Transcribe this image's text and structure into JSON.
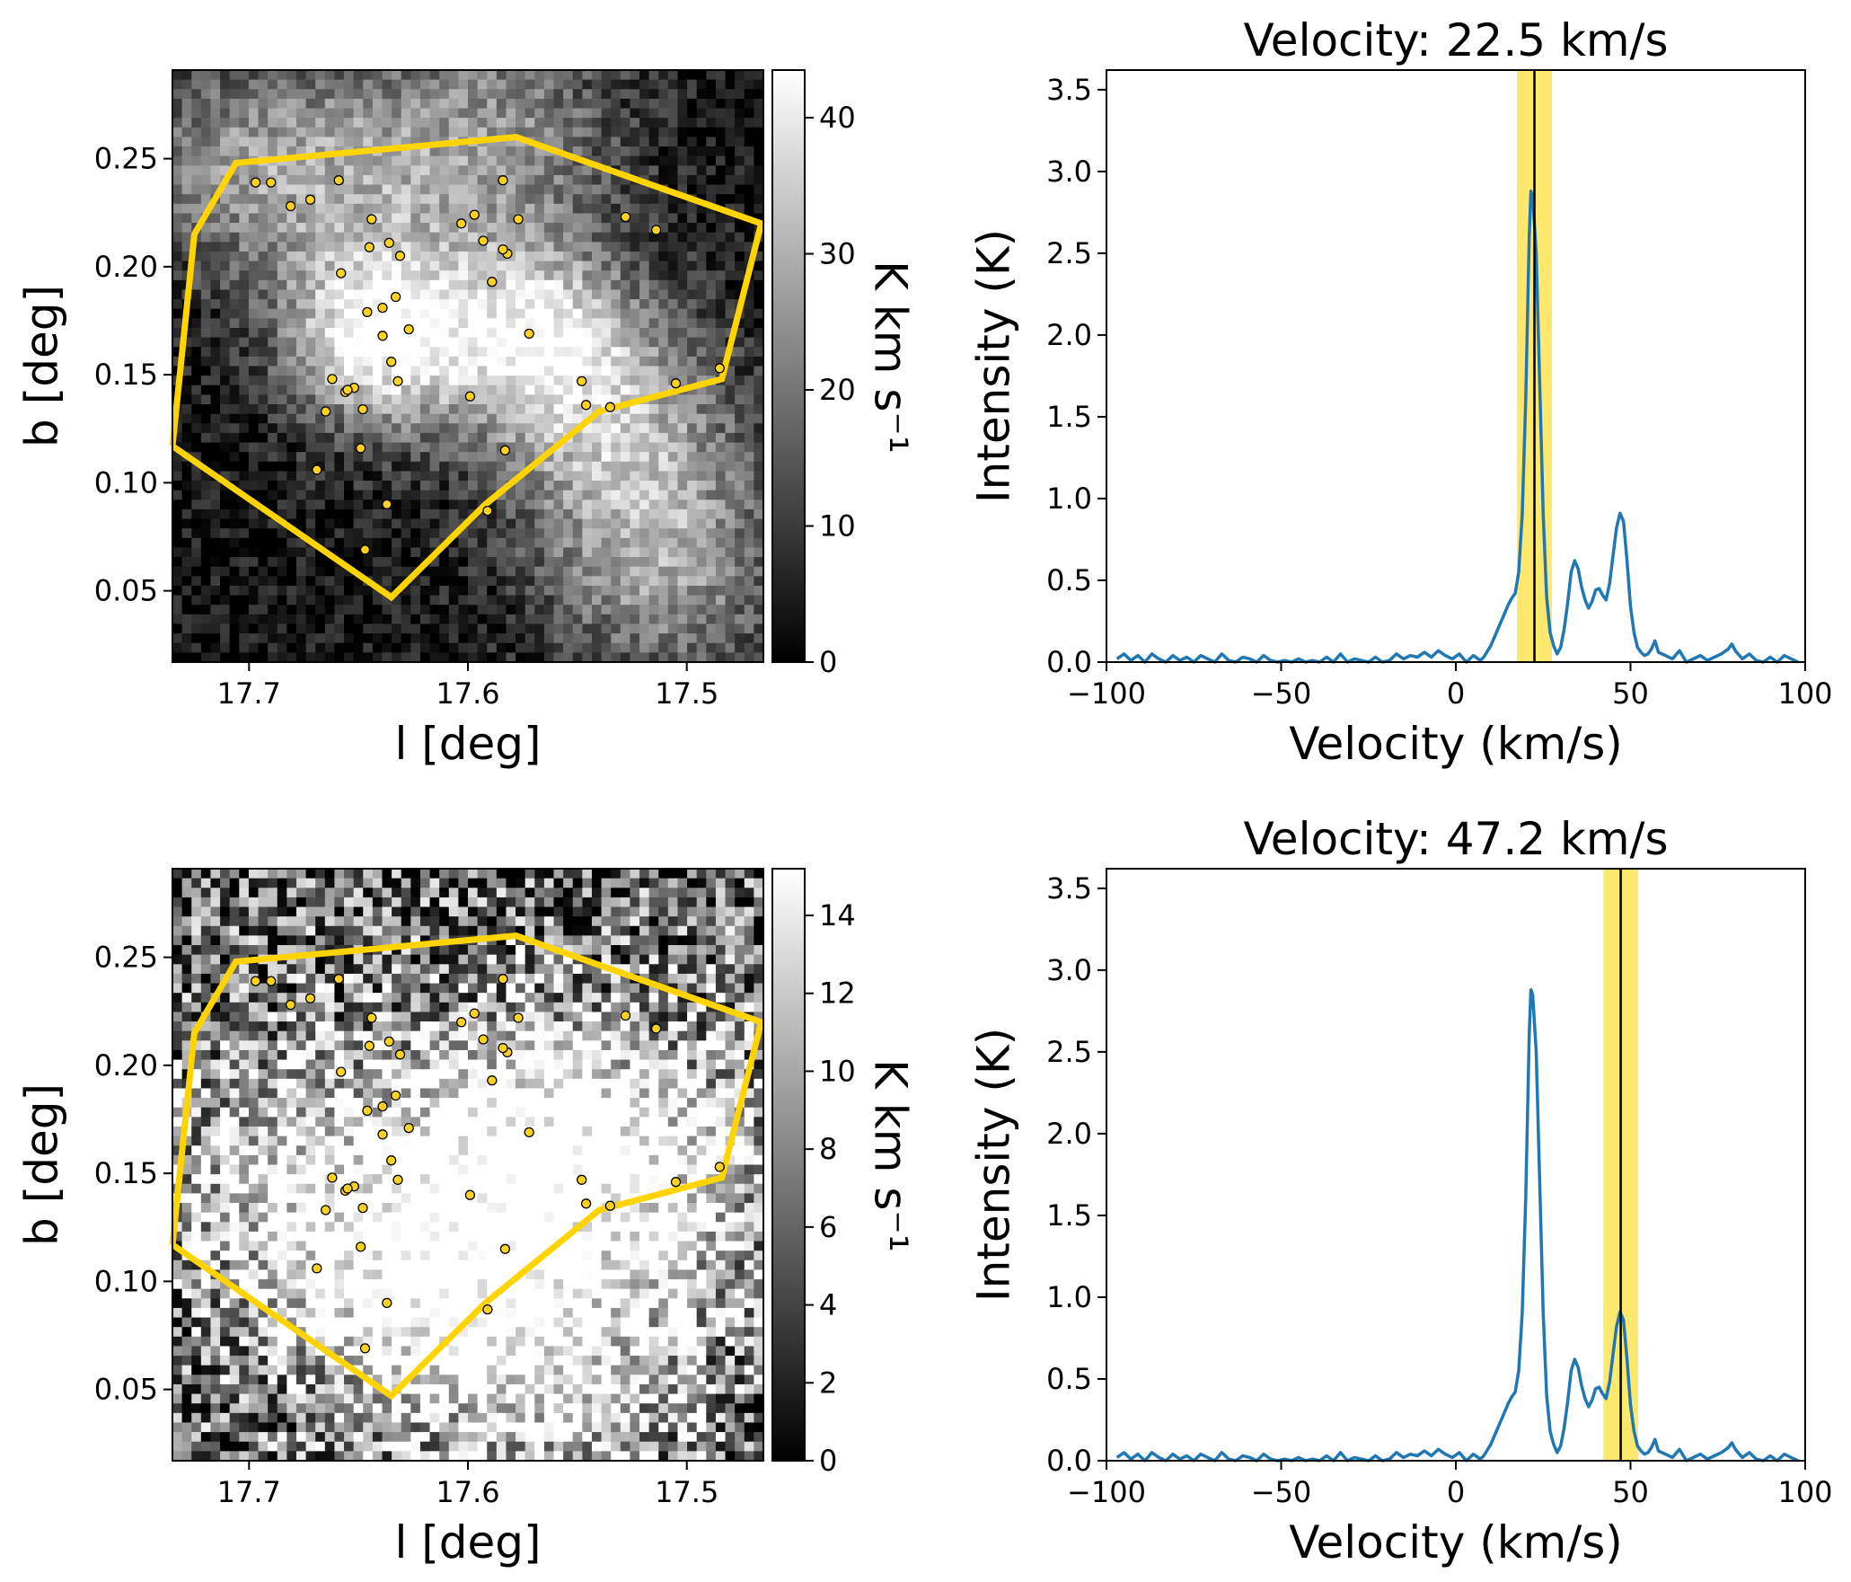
{
  "colors": {
    "polygon": "#ffd400",
    "marker_fill": "#ffd21f",
    "marker_edge": "#000000",
    "spectrum_line": "#1f77b4",
    "velocity_band": "#ffe766",
    "velocity_line": "#000000"
  },
  "chart_data": [
    {
      "type": "heatmap",
      "panel": "top-left",
      "title": "",
      "xlabel": "l [deg]",
      "ylabel": "b [deg]",
      "xlim": [
        17.735,
        17.465
      ],
      "ylim": [
        0.017,
        0.291
      ],
      "xticks": [
        17.7,
        17.6,
        17.5
      ],
      "xtick_labels": [
        "17.7",
        "17.6",
        "17.5"
      ],
      "yticks": [
        0.05,
        0.1,
        0.15,
        0.2,
        0.25
      ],
      "ytick_labels": [
        "0.05",
        "0.10",
        "0.15",
        "0.20",
        "0.25"
      ],
      "colormap": "gray",
      "colorbar": {
        "label": "K km s⁻¹",
        "range": [
          0,
          43.5
        ],
        "ticks": [
          0,
          10,
          20,
          30,
          40
        ],
        "tick_labels": [
          "0",
          "10",
          "20",
          "30",
          "40"
        ]
      },
      "emission_blobs": [
        {
          "l": 17.64,
          "b": 0.165,
          "sigma": 0.03,
          "amp": 38
        },
        {
          "l": 17.66,
          "b": 0.24,
          "sigma": 0.045,
          "amp": 22
        },
        {
          "l": 17.57,
          "b": 0.17,
          "sigma": 0.03,
          "amp": 28
        },
        {
          "l": 17.535,
          "b": 0.13,
          "sigma": 0.04,
          "amp": 25
        },
        {
          "l": 17.51,
          "b": 0.06,
          "sigma": 0.04,
          "amp": 22
        },
        {
          "l": 17.58,
          "b": 0.26,
          "sigma": 0.04,
          "amp": 18
        },
        {
          "l": 17.72,
          "b": 0.25,
          "sigma": 0.03,
          "amp": 12
        }
      ],
      "polygon": {
        "l": [
          17.735,
          17.725,
          17.706,
          17.578,
          17.466,
          17.484,
          17.54,
          17.592,
          17.635,
          17.735
        ],
        "b": [
          0.117,
          0.215,
          0.248,
          0.26,
          0.22,
          0.148,
          0.133,
          0.09,
          0.047,
          0.117
        ]
      },
      "points": {
        "l": [
          17.697,
          17.69,
          17.681,
          17.672,
          17.659,
          17.644,
          17.636,
          17.631,
          17.658,
          17.646,
          17.639,
          17.639,
          17.627,
          17.662,
          17.652,
          17.665,
          17.656,
          17.655,
          17.648,
          17.649,
          17.669,
          17.632,
          17.635,
          17.647,
          17.637,
          17.603,
          17.597,
          17.584,
          17.577,
          17.582,
          17.584,
          17.589,
          17.572,
          17.599,
          17.583,
          17.591,
          17.593,
          17.528,
          17.514,
          17.548,
          17.546,
          17.535,
          17.505,
          17.485,
          17.645,
          17.633
        ],
        "b": [
          0.239,
          0.239,
          0.228,
          0.231,
          0.24,
          0.222,
          0.211,
          0.205,
          0.197,
          0.179,
          0.168,
          0.181,
          0.171,
          0.148,
          0.144,
          0.133,
          0.142,
          0.143,
          0.134,
          0.116,
          0.106,
          0.147,
          0.156,
          0.069,
          0.09,
          0.22,
          0.224,
          0.24,
          0.222,
          0.206,
          0.208,
          0.193,
          0.169,
          0.14,
          0.115,
          0.087,
          0.212,
          0.223,
          0.217,
          0.147,
          0.136,
          0.135,
          0.146,
          0.153,
          0.209,
          0.186
        ]
      }
    },
    {
      "type": "line",
      "panel": "top-right",
      "title": "Velocity: 22.5 km/s",
      "xlabel": "Velocity (km/s)",
      "ylabel": "Intensity (K)",
      "xlim": [
        -100,
        100
      ],
      "ylim": [
        0,
        3.62
      ],
      "xticks": [
        -100,
        -50,
        0,
        50,
        100
      ],
      "xtick_labels": [
        "−100",
        "−50",
        "0",
        "50",
        "100"
      ],
      "yticks": [
        0,
        0.5,
        1.0,
        1.5,
        2.0,
        2.5,
        3.0,
        3.5
      ],
      "ytick_labels": [
        "0.0",
        "0.5",
        "1.0",
        "1.5",
        "2.0",
        "2.5",
        "3.0",
        "3.5"
      ],
      "velocity_marker": 22.5,
      "velocity_band": [
        17.5,
        27.5
      ],
      "series": [
        {
          "x": [
            -97,
            -95,
            -93,
            -91,
            -89,
            -87,
            -85,
            -83,
            -81,
            -79,
            -77,
            -75,
            -73,
            -71,
            -69,
            -67,
            -65,
            -63,
            -61,
            -59,
            -57,
            -55,
            -53,
            -51,
            -49,
            -47,
            -45,
            -43,
            -41,
            -39,
            -37,
            -35,
            -33,
            -31,
            -29,
            -27,
            -25,
            -23,
            -21,
            -19,
            -17,
            -15,
            -13,
            -11,
            -9,
            -7,
            -5,
            -3,
            -1,
            1,
            3,
            5,
            7,
            8,
            10,
            12,
            14,
            15,
            16,
            17,
            18,
            19,
            20,
            21,
            21.5,
            22,
            23,
            24,
            25,
            26,
            27,
            28,
            29,
            30,
            31,
            32,
            33,
            34,
            35,
            36,
            37,
            38,
            39,
            40,
            41,
            42,
            43,
            44,
            45,
            46,
            47,
            48,
            49,
            50,
            51,
            52,
            53,
            54,
            55,
            56,
            57,
            58,
            60,
            62,
            64,
            66,
            68,
            70,
            72,
            74,
            76,
            78,
            79,
            80,
            82,
            84,
            86,
            88,
            90,
            92,
            94,
            96,
            98
          ],
          "y": [
            0.02,
            0.05,
            0.01,
            0.04,
            0.0,
            0.05,
            0.02,
            0.0,
            0.04,
            0.01,
            0.03,
            0.0,
            0.04,
            0.02,
            0.0,
            0.05,
            0.01,
            0.0,
            0.03,
            0.02,
            0.0,
            0.04,
            0.01,
            0.0,
            0.01,
            0.0,
            0.02,
            0.0,
            0.01,
            0.0,
            0.03,
            0.0,
            0.05,
            0.0,
            0.02,
            0.01,
            0.0,
            0.03,
            0.0,
            0.01,
            0.05,
            0.02,
            0.04,
            0.03,
            0.06,
            0.03,
            0.07,
            0.04,
            0.02,
            0.05,
            0.0,
            0.04,
            0.01,
            0.03,
            0.1,
            0.2,
            0.3,
            0.35,
            0.39,
            0.42,
            0.55,
            0.9,
            1.6,
            2.6,
            2.88,
            2.85,
            2.5,
            1.7,
            0.9,
            0.4,
            0.18,
            0.1,
            0.05,
            0.09,
            0.2,
            0.36,
            0.55,
            0.62,
            0.57,
            0.46,
            0.38,
            0.33,
            0.37,
            0.44,
            0.45,
            0.41,
            0.38,
            0.48,
            0.65,
            0.82,
            0.91,
            0.86,
            0.62,
            0.34,
            0.18,
            0.09,
            0.06,
            0.04,
            0.05,
            0.08,
            0.13,
            0.06,
            0.04,
            0.02,
            0.07,
            0.0,
            0.02,
            0.04,
            0.01,
            0.03,
            0.05,
            0.08,
            0.11,
            0.07,
            0.02,
            0.05,
            0.01,
            0.0,
            0.03,
            0.0,
            0.04,
            0.02,
            0.0
          ]
        }
      ]
    },
    {
      "type": "heatmap",
      "panel": "bottom-left",
      "title": "",
      "xlabel": "l [deg]",
      "ylabel": "b [deg]",
      "xlim": [
        17.735,
        17.465
      ],
      "ylim": [
        0.017,
        0.291
      ],
      "xticks": [
        17.7,
        17.6,
        17.5
      ],
      "xtick_labels": [
        "17.7",
        "17.6",
        "17.5"
      ],
      "yticks": [
        0.05,
        0.1,
        0.15,
        0.2,
        0.25
      ],
      "ytick_labels": [
        "0.05",
        "0.10",
        "0.15",
        "0.20",
        "0.25"
      ],
      "colormap": "gray",
      "colorbar": {
        "label": "K km s⁻¹",
        "range": [
          0,
          15.2
        ],
        "ticks": [
          0,
          2,
          4,
          6,
          8,
          10,
          12,
          14
        ],
        "tick_labels": [
          "0",
          "2",
          "4",
          "6",
          "8",
          "10",
          "12",
          "14"
        ]
      },
      "emission_blobs": [
        {
          "l": 17.62,
          "b": 0.09,
          "sigma": 0.045,
          "amp": 11
        },
        {
          "l": 17.52,
          "b": 0.15,
          "sigma": 0.05,
          "amp": 10
        },
        {
          "l": 17.68,
          "b": 0.15,
          "sigma": 0.05,
          "amp": 8
        },
        {
          "l": 17.58,
          "b": 0.17,
          "sigma": 0.04,
          "amp": 8
        },
        {
          "l": 17.55,
          "b": 0.05,
          "sigma": 0.04,
          "amp": 7
        }
      ],
      "polygon": {
        "l": [
          17.735,
          17.725,
          17.706,
          17.578,
          17.466,
          17.484,
          17.54,
          17.592,
          17.635,
          17.735
        ],
        "b": [
          0.117,
          0.215,
          0.248,
          0.26,
          0.22,
          0.148,
          0.133,
          0.09,
          0.047,
          0.117
        ]
      },
      "points": {
        "l": [
          17.697,
          17.69,
          17.681,
          17.672,
          17.659,
          17.644,
          17.636,
          17.631,
          17.658,
          17.646,
          17.639,
          17.639,
          17.627,
          17.662,
          17.652,
          17.665,
          17.656,
          17.655,
          17.648,
          17.649,
          17.669,
          17.632,
          17.635,
          17.647,
          17.637,
          17.603,
          17.597,
          17.584,
          17.577,
          17.582,
          17.584,
          17.589,
          17.572,
          17.599,
          17.583,
          17.591,
          17.593,
          17.528,
          17.514,
          17.548,
          17.546,
          17.535,
          17.505,
          17.485,
          17.645,
          17.633
        ],
        "b": [
          0.239,
          0.239,
          0.228,
          0.231,
          0.24,
          0.222,
          0.211,
          0.205,
          0.197,
          0.179,
          0.168,
          0.181,
          0.171,
          0.148,
          0.144,
          0.133,
          0.142,
          0.143,
          0.134,
          0.116,
          0.106,
          0.147,
          0.156,
          0.069,
          0.09,
          0.22,
          0.224,
          0.24,
          0.222,
          0.206,
          0.208,
          0.193,
          0.169,
          0.14,
          0.115,
          0.087,
          0.212,
          0.223,
          0.217,
          0.147,
          0.136,
          0.135,
          0.146,
          0.153,
          0.209,
          0.186
        ]
      }
    },
    {
      "type": "line",
      "panel": "bottom-right",
      "title": "Velocity: 47.2 km/s",
      "xlabel": "Velocity (km/s)",
      "ylabel": "Intensity (K)",
      "xlim": [
        -100,
        100
      ],
      "ylim": [
        0,
        3.62
      ],
      "xticks": [
        -100,
        -50,
        0,
        50,
        100
      ],
      "xtick_labels": [
        "−100",
        "−50",
        "0",
        "50",
        "100"
      ],
      "yticks": [
        0,
        0.5,
        1.0,
        1.5,
        2.0,
        2.5,
        3.0,
        3.5
      ],
      "ytick_labels": [
        "0.0",
        "0.5",
        "1.0",
        "1.5",
        "2.0",
        "2.5",
        "3.0",
        "3.5"
      ],
      "velocity_marker": 47.2,
      "velocity_band": [
        42.2,
        52.2
      ],
      "series": [
        {
          "x": [
            -97,
            -95,
            -93,
            -91,
            -89,
            -87,
            -85,
            -83,
            -81,
            -79,
            -77,
            -75,
            -73,
            -71,
            -69,
            -67,
            -65,
            -63,
            -61,
            -59,
            -57,
            -55,
            -53,
            -51,
            -49,
            -47,
            -45,
            -43,
            -41,
            -39,
            -37,
            -35,
            -33,
            -31,
            -29,
            -27,
            -25,
            -23,
            -21,
            -19,
            -17,
            -15,
            -13,
            -11,
            -9,
            -7,
            -5,
            -3,
            -1,
            1,
            3,
            5,
            7,
            8,
            10,
            12,
            14,
            15,
            16,
            17,
            18,
            19,
            20,
            21,
            21.5,
            22,
            23,
            24,
            25,
            26,
            27,
            28,
            29,
            30,
            31,
            32,
            33,
            34,
            35,
            36,
            37,
            38,
            39,
            40,
            41,
            42,
            43,
            44,
            45,
            46,
            47,
            48,
            49,
            50,
            51,
            52,
            53,
            54,
            55,
            56,
            57,
            58,
            60,
            62,
            64,
            66,
            68,
            70,
            72,
            74,
            76,
            78,
            79,
            80,
            82,
            84,
            86,
            88,
            90,
            92,
            94,
            96,
            98
          ],
          "y": [
            0.02,
            0.05,
            0.01,
            0.04,
            0.0,
            0.05,
            0.02,
            0.0,
            0.04,
            0.01,
            0.03,
            0.0,
            0.04,
            0.02,
            0.0,
            0.05,
            0.01,
            0.0,
            0.03,
            0.02,
            0.0,
            0.04,
            0.01,
            0.0,
            0.01,
            0.0,
            0.02,
            0.0,
            0.01,
            0.0,
            0.03,
            0.0,
            0.05,
            0.0,
            0.02,
            0.01,
            0.0,
            0.03,
            0.0,
            0.01,
            0.05,
            0.02,
            0.04,
            0.03,
            0.06,
            0.03,
            0.07,
            0.04,
            0.02,
            0.05,
            0.0,
            0.04,
            0.01,
            0.03,
            0.1,
            0.2,
            0.3,
            0.35,
            0.39,
            0.42,
            0.55,
            0.9,
            1.6,
            2.6,
            2.88,
            2.85,
            2.5,
            1.7,
            0.9,
            0.4,
            0.18,
            0.1,
            0.05,
            0.09,
            0.2,
            0.36,
            0.55,
            0.62,
            0.57,
            0.46,
            0.38,
            0.33,
            0.37,
            0.44,
            0.45,
            0.41,
            0.38,
            0.48,
            0.65,
            0.82,
            0.91,
            0.86,
            0.62,
            0.34,
            0.18,
            0.09,
            0.06,
            0.04,
            0.05,
            0.08,
            0.13,
            0.06,
            0.04,
            0.02,
            0.07,
            0.0,
            0.02,
            0.04,
            0.01,
            0.03,
            0.05,
            0.08,
            0.11,
            0.07,
            0.02,
            0.05,
            0.01,
            0.0,
            0.03,
            0.0,
            0.04,
            0.02,
            0.0
          ]
        }
      ]
    }
  ]
}
